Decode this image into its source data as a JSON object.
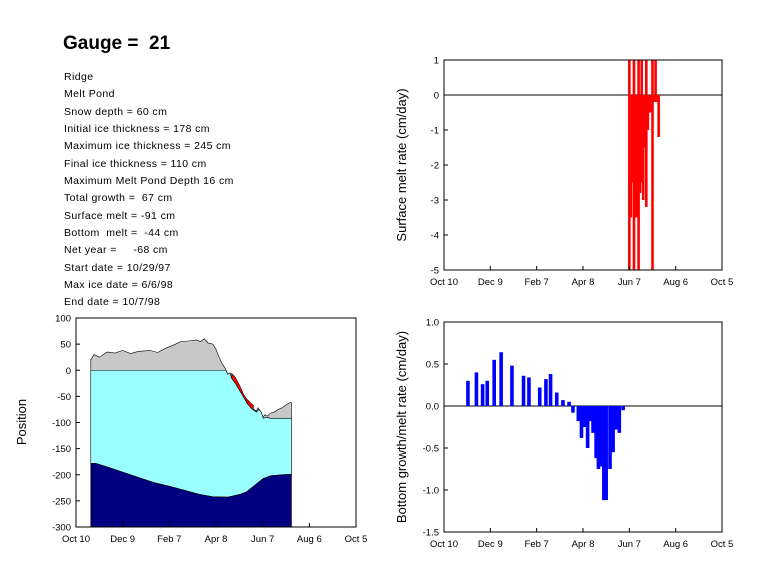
{
  "header": {
    "title": "Gauge =  21"
  },
  "info_lines": [
    "Ridge",
    "Melt Pond",
    "Snow depth = 60 cm",
    "Initial ice thickness = 178 cm",
    "Maximum ice thickness = 245 cm",
    "Final ice thickness = 110 cm",
    "Maximum Melt Pond Depth 16 cm",
    "Total growth =  67 cm",
    "Surface melt = -91 cm",
    "Bottom  melt =  -44 cm",
    "Net year =     -68 cm",
    "Start date = 10/29/97",
    "Max ice date = 6/6/98",
    "End date = 10/7/98"
  ],
  "x_ticks": [
    "Oct 10",
    "Dec 9",
    "Feb 7",
    "Apr 8",
    "Jun 7",
    "Aug 6",
    "Oct 5"
  ],
  "chart_data": [
    {
      "type": "area",
      "id": "position",
      "title": "",
      "xlabel": "",
      "ylabel": "Position",
      "xlim": [
        0,
        360
      ],
      "ylim": [
        -300,
        100
      ],
      "y_ticks": [
        "100",
        "50",
        "0",
        "-50",
        "-100",
        "-150",
        "-200",
        "-250",
        "-300"
      ],
      "series": [
        {
          "role": "snow_top",
          "color": "#c8c8c8",
          "points": [
            [
              19,
              20
            ],
            [
              23,
              30
            ],
            [
              30,
              25
            ],
            [
              40,
              35
            ],
            [
              50,
              33
            ],
            [
              60,
              38
            ],
            [
              70,
              32
            ],
            [
              80,
              36
            ],
            [
              95,
              38
            ],
            [
              105,
              34
            ],
            [
              115,
              42
            ],
            [
              125,
              48
            ],
            [
              135,
              55
            ],
            [
              145,
              56
            ],
            [
              155,
              58
            ],
            [
              160,
              55
            ],
            [
              165,
              60
            ],
            [
              170,
              52
            ],
            [
              176,
              50
            ],
            [
              180,
              40
            ],
            [
              184,
              25
            ],
            [
              187,
              15
            ],
            [
              190,
              8
            ],
            [
              193,
              0
            ],
            [
              195,
              -8
            ],
            [
              198,
              -5
            ],
            [
              200,
              -15
            ],
            [
              203,
              -20
            ],
            [
              206,
              -28
            ],
            [
              210,
              -35
            ],
            [
              214,
              -45
            ],
            [
              217,
              -55
            ],
            [
              220,
              -62
            ],
            [
              223,
              -68
            ],
            [
              226,
              -72
            ],
            [
              229,
              -75
            ],
            [
              232,
              -78
            ],
            [
              234,
              -72
            ],
            [
              237,
              -78
            ],
            [
              240,
              -90
            ],
            [
              243,
              -85
            ],
            [
              246,
              -88
            ],
            [
              250,
              -82
            ],
            [
              255,
              -80
            ],
            [
              260,
              -75
            ],
            [
              265,
              -72
            ],
            [
              270,
              -66
            ],
            [
              275,
              -62
            ],
            [
              277,
              -62
            ]
          ]
        },
        {
          "role": "ice_surface",
          "color": "#99ffff",
          "points": [
            [
              19,
              0
            ],
            [
              193,
              0
            ],
            [
              195,
              -8
            ],
            [
              198,
              -5
            ],
            [
              200,
              -15
            ],
            [
              205,
              -25
            ],
            [
              210,
              -38
            ],
            [
              215,
              -50
            ],
            [
              220,
              -63
            ],
            [
              225,
              -72
            ],
            [
              228,
              -76
            ],
            [
              232,
              -80
            ],
            [
              235,
              -75
            ],
            [
              238,
              -80
            ],
            [
              241,
              -92
            ],
            [
              245,
              -90
            ],
            [
              250,
              -92
            ],
            [
              260,
              -92
            ],
            [
              270,
              -92
            ],
            [
              277,
              -92
            ]
          ]
        },
        {
          "role": "pond_top",
          "color": "#ff0000",
          "points": [
            [
              200,
              -6
            ],
            [
              205,
              -14
            ],
            [
              210,
              -28
            ],
            [
              215,
              -45
            ],
            [
              220,
              -56
            ],
            [
              225,
              -63
            ],
            [
              228,
              -67
            ]
          ]
        },
        {
          "role": "ice_bottom",
          "color": "#000080",
          "points": [
            [
              19,
              -178
            ],
            [
              25,
              -178
            ],
            [
              40,
              -185
            ],
            [
              60,
              -195
            ],
            [
              80,
              -205
            ],
            [
              100,
              -215
            ],
            [
              120,
              -222
            ],
            [
              140,
              -230
            ],
            [
              160,
              -238
            ],
            [
              175,
              -242
            ],
            [
              195,
              -243
            ],
            [
              210,
              -238
            ],
            [
              220,
              -232
            ],
            [
              230,
              -220
            ],
            [
              240,
              -208
            ],
            [
              250,
              -202
            ],
            [
              265,
              -200
            ],
            [
              277,
              -199
            ]
          ]
        }
      ]
    },
    {
      "type": "bar",
      "id": "surface_melt",
      "title": "",
      "xlabel": "",
      "ylabel": "Surface melt rate (cm/day)",
      "xlim": [
        0,
        360
      ],
      "ylim": [
        -5,
        1
      ],
      "y_ticks": [
        "1",
        "0",
        "-1",
        "-2",
        "-3",
        "-4",
        "-5"
      ],
      "color": "#ff0000",
      "bars": [
        [
          240,
          -5
        ],
        [
          242,
          -3.5
        ],
        [
          244,
          -2.5
        ],
        [
          246,
          -5
        ],
        [
          248,
          -3.5
        ],
        [
          250,
          -3.5
        ],
        [
          252,
          -5
        ],
        [
          254,
          -2.8
        ],
        [
          256,
          -2.5
        ],
        [
          258,
          -3
        ],
        [
          260,
          -1.5
        ],
        [
          262,
          -3.2
        ],
        [
          264,
          -1
        ],
        [
          267,
          -0.5
        ],
        [
          270,
          -5
        ],
        [
          272,
          -0.2
        ],
        [
          275,
          -0.2
        ],
        [
          278,
          -1.2
        ]
      ],
      "spikes": [
        [
          240,
          1
        ],
        [
          246,
          1
        ],
        [
          252,
          1
        ],
        [
          256,
          1
        ],
        [
          262,
          1
        ],
        [
          270,
          1
        ],
        [
          274,
          1
        ]
      ]
    },
    {
      "type": "bar",
      "id": "bottom_rate",
      "title": "",
      "xlabel": "",
      "ylabel": "Bottom growth/melt rate (cm/day)",
      "xlim": [
        0,
        360
      ],
      "ylim": [
        -1.5,
        1
      ],
      "y_ticks": [
        "1.0",
        "0.5",
        "0.0",
        "-0.5",
        "-1.0",
        "-1.5"
      ],
      "color": "#0000ff",
      "bars": [
        [
          31,
          0.3
        ],
        [
          42,
          0.4
        ],
        [
          50,
          0.26
        ],
        [
          56,
          0.3
        ],
        [
          65,
          0.55
        ],
        [
          74,
          0.64
        ],
        [
          88,
          0.48
        ],
        [
          103,
          0.36
        ],
        [
          110,
          0.34
        ],
        [
          124,
          0.22
        ],
        [
          132,
          0.32
        ],
        [
          138,
          0.38
        ],
        [
          146,
          0.16
        ],
        [
          154,
          0.07
        ],
        [
          162,
          0.05
        ],
        [
          167,
          -0.08
        ],
        [
          174,
          -0.18
        ],
        [
          178,
          -0.38
        ],
        [
          182,
          -0.25
        ],
        [
          186,
          -0.5
        ],
        [
          190,
          -0.18
        ],
        [
          193,
          -0.32
        ],
        [
          197,
          -0.62
        ],
        [
          200,
          -0.75
        ],
        [
          203,
          -0.72
        ],
        [
          207,
          -1.12
        ],
        [
          210,
          -1.12
        ],
        [
          215,
          -0.75
        ],
        [
          219,
          -0.55
        ],
        [
          223,
          -0.28
        ],
        [
          227,
          -0.32
        ],
        [
          232,
          -0.05
        ]
      ]
    }
  ]
}
